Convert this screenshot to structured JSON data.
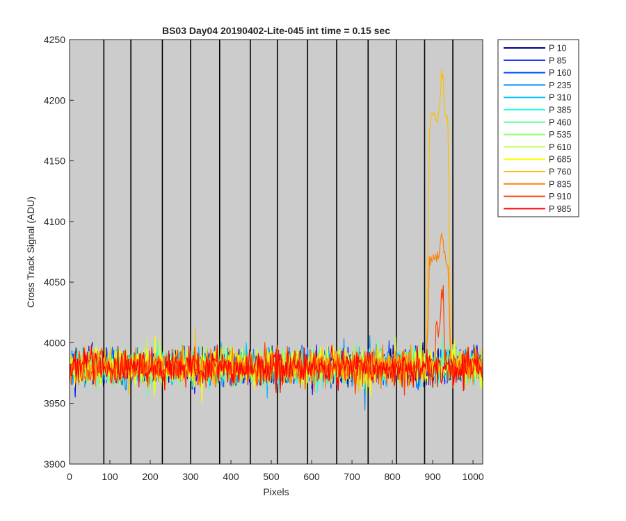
{
  "chart_data": {
    "type": "line",
    "title": "BS03 Day04 20190402-Lite-045 int time = 0.15 sec",
    "xlabel": "Pixels",
    "ylabel": "Cross Track Signal (ADU)",
    "xlim": [
      0,
      1024
    ],
    "ylim": [
      3900,
      4250
    ],
    "xticks": [
      0,
      100,
      200,
      300,
      400,
      500,
      600,
      700,
      800,
      900,
      1000
    ],
    "yticks": [
      3900,
      3950,
      4000,
      4050,
      4100,
      4150,
      4200,
      4250
    ],
    "background": "#cccccc",
    "grid": false,
    "legend_position": "outside-top-right",
    "vertical_lines_x": [
      85,
      152,
      230,
      300,
      372,
      448,
      515,
      590,
      662,
      740,
      810,
      880,
      950
    ],
    "baseline_mean": 3980,
    "baseline_noise_range": [
      3945,
      4015
    ],
    "series": [
      {
        "name": "P 10",
        "color": "#00008f"
      },
      {
        "name": "P 85",
        "color": "#0010ff"
      },
      {
        "name": "P 160",
        "color": "#0050ff"
      },
      {
        "name": "P 235",
        "color": "#0090ff"
      },
      {
        "name": "P 310",
        "color": "#00c0ff"
      },
      {
        "name": "P 385",
        "color": "#20ffdf"
      },
      {
        "name": "P 460",
        "color": "#60ffa0"
      },
      {
        "name": "P 535",
        "color": "#90ff70"
      },
      {
        "name": "P 610",
        "color": "#c0ff40"
      },
      {
        "name": "P 685",
        "color": "#ffff00"
      },
      {
        "name": "P 760",
        "color": "#ffbf00",
        "peak": {
          "x_range": [
            885,
            945
          ],
          "max": 4220,
          "plateau": 4185
        }
      },
      {
        "name": "P 835",
        "color": "#ff8000",
        "peak": {
          "x_range": [
            885,
            945
          ],
          "max": 4090,
          "plateau": 4068
        }
      },
      {
        "name": "P 910",
        "color": "#ff4000",
        "peak": {
          "x_range": [
            905,
            930
          ],
          "max": 4045,
          "plateau": 4010
        }
      },
      {
        "name": "P 985",
        "color": "#ff0000"
      }
    ]
  }
}
